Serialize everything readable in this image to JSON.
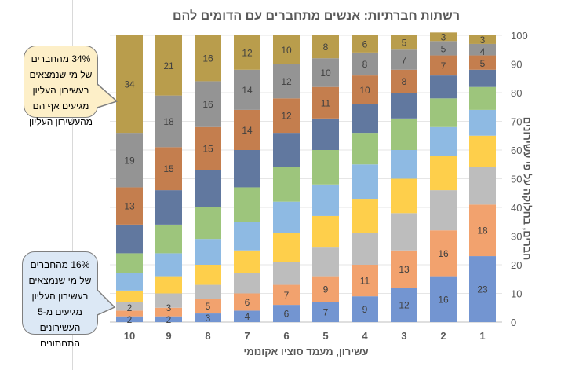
{
  "chart_data": {
    "type": "bar",
    "stacked": true,
    "title": "רשתות חברתיות: אנשים מתחברים עם הדומים להם",
    "xlabel": "עשירון, מעמד סוציו אקונומי",
    "ylabel": "חברים, בחלוקה על פי עשירונים",
    "ylim": [
      0,
      100
    ],
    "yticks": [
      0,
      10,
      20,
      30,
      40,
      50,
      60,
      70,
      80,
      90,
      100
    ],
    "grid": true,
    "legend": "none",
    "x_order": "right-to-left",
    "categories": [
      "1",
      "2",
      "3",
      "4",
      "5",
      "6",
      "7",
      "8",
      "9",
      "10"
    ],
    "labeled_series": [
      1,
      2,
      8,
      9,
      10
    ],
    "series": [
      {
        "color": "#7395d1",
        "values": [
          23,
          16,
          12,
          9,
          7,
          6,
          4,
          3,
          2,
          2
        ]
      },
      {
        "color": "#f2a26e",
        "values": [
          18,
          16,
          13,
          11,
          9,
          7,
          6,
          5,
          3,
          2
        ]
      },
      {
        "color": "#bdbdbd",
        "values": [
          13,
          14,
          13,
          11,
          10,
          8,
          7,
          5,
          5,
          3
        ]
      },
      {
        "color": "#fecf4b",
        "values": [
          11,
          12,
          12,
          12,
          11,
          10,
          8,
          7,
          6,
          4
        ]
      },
      {
        "color": "#8ebae3",
        "values": [
          9,
          10,
          10,
          12,
          11,
          11,
          10,
          9,
          8,
          6
        ]
      },
      {
        "color": "#9dc57c",
        "values": [
          8,
          10,
          11,
          11,
          12,
          12,
          12,
          11,
          10,
          7
        ]
      },
      {
        "color": "#61789f",
        "values": [
          6,
          8,
          9,
          10,
          11,
          12,
          13,
          13,
          12,
          10
        ]
      },
      {
        "color": "#c47e4e",
        "values": [
          5,
          7,
          8,
          10,
          11,
          12,
          14,
          15,
          15,
          13
        ]
      },
      {
        "color": "#949494",
        "values": [
          4,
          5,
          7,
          8,
          10,
          12,
          14,
          16,
          18,
          19
        ]
      },
      {
        "color": "#b99d4c",
        "values": [
          3,
          3,
          5,
          6,
          8,
          10,
          12,
          16,
          21,
          34
        ]
      }
    ]
  },
  "callouts": {
    "top": [
      "34% מהחברים",
      "של מי שנמצאים",
      "בעשירון העליון",
      "מגיעים אף הם",
      "מהעשירון העליון"
    ],
    "bottom": [
      "16% מהחברים",
      "של מי שנמצאים",
      "בעשירון העליון",
      "מגיעים מ-5",
      "העשירונים",
      "התחתונים"
    ]
  }
}
